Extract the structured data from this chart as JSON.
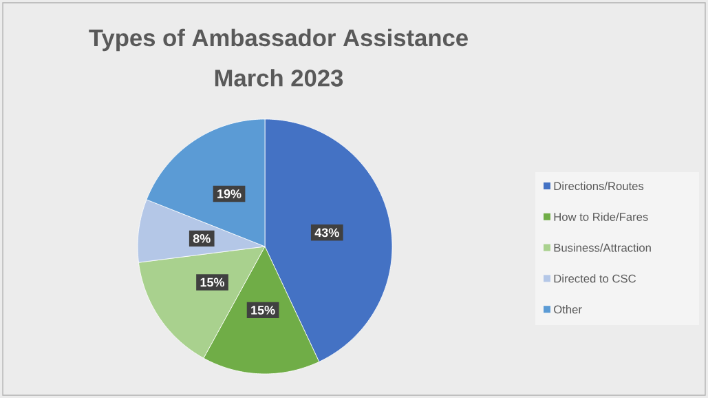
{
  "chart_data": {
    "type": "pie",
    "title": "Types of Ambassador Assistance",
    "subtitle": "March 2023",
    "categories": [
      "Directions/Routes",
      "How to Ride/Fares",
      "Business/Attraction",
      "Directed to CSC",
      "Other"
    ],
    "values": [
      43,
      15,
      15,
      8,
      19
    ],
    "value_labels": [
      "43%",
      "15%",
      "15%",
      "8%",
      "19%"
    ],
    "colors": [
      "#4472c4",
      "#70ad47",
      "#a9d18e",
      "#b4c7e7",
      "#5b9bd5"
    ],
    "legend": "right"
  }
}
